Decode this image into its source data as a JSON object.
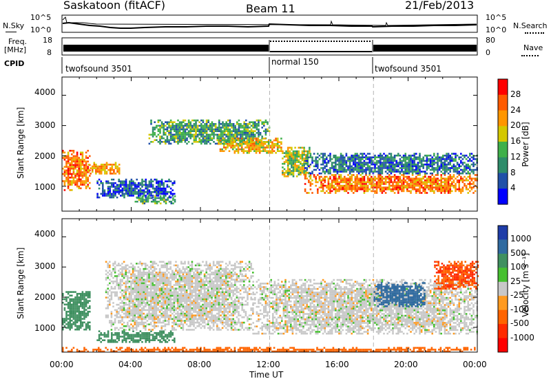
{
  "header": {
    "title": "Saskatoon (fitACF)",
    "beam": "Beam 11",
    "date": "21/Feb/2013"
  },
  "strips": {
    "nsky_label": "N.Sky",
    "nsky_ticks": [
      "10^5",
      "10^0"
    ],
    "nsearch_label": "N.Search",
    "freq_label_1": "Freq.",
    "freq_label_2": "[MHz]",
    "freq_ticks": [
      "18",
      "8"
    ],
    "nave_ticks": [
      "80",
      "0"
    ],
    "nave_label": "Nave",
    "cpid_label": "CPID",
    "cpid_segments": [
      "twofsound 3501",
      "normal 150",
      "twofsound 3501"
    ]
  },
  "panels": {
    "yaxis_label": "Slant Range [km]",
    "y_ticks": [
      "4000",
      "3000",
      "2000",
      "1000"
    ],
    "x_ticks": [
      "00:00",
      "04:00",
      "08:00",
      "12:00",
      "16:00",
      "20:00",
      "00:00"
    ],
    "xaxis_label": "Time UT"
  },
  "colorbars": {
    "power_label": "Power [dB]",
    "power_ticks": [
      "28",
      "24",
      "20",
      "16",
      "12",
      "8",
      "4"
    ],
    "power_colors": [
      "#ff0000",
      "#ff5a00",
      "#ff9600",
      "#d4c800",
      "#3fb04a",
      "#2e8c6a",
      "#2050a8",
      "#0000ff"
    ],
    "velocity_label": "Velocity [m s⁻¹]",
    "velocity_ticks": [
      "1000",
      "500",
      "100",
      "25",
      "-25",
      "-100",
      "-500",
      "-1000"
    ],
    "velocity_colors": [
      "#1e3ca8",
      "#2f6aa0",
      "#3f9060",
      "#46c030",
      "#c8c8c8",
      "#ff9a20",
      "#ff6400",
      "#ff2a00",
      "#ff0000"
    ]
  },
  "chart_data": [
    {
      "type": "heatmap",
      "title": "Power",
      "xlabel": "Time UT",
      "ylabel": "Slant Range [km]",
      "xlim": [
        0,
        24
      ],
      "ylim": [
        180,
        4600
      ],
      "colorbar_label": "Power [dB]",
      "colorbar_range": [
        0,
        32
      ],
      "regions": [
        {
          "t": [
            0.0,
            1.6
          ],
          "r": [
            900,
            2200
          ],
          "db": 26
        },
        {
          "t": [
            1.5,
            3.3
          ],
          "r": [
            1400,
            1800
          ],
          "db": 24
        },
        {
          "t": [
            2.0,
            6.5
          ],
          "r": [
            650,
            1250
          ],
          "db": 8
        },
        {
          "t": [
            4.2,
            6.5
          ],
          "r": [
            450,
            700
          ],
          "db": 14
        },
        {
          "t": [
            5.0,
            12.0
          ],
          "r": [
            2400,
            3200
          ],
          "db": 14
        },
        {
          "t": [
            9.0,
            12.7
          ],
          "r": [
            2100,
            2600
          ],
          "db": 22
        },
        {
          "t": [
            12.7,
            14.3
          ],
          "r": [
            1300,
            2300
          ],
          "db": 18
        },
        {
          "t": [
            14.0,
            24.0
          ],
          "r": [
            800,
            1400
          ],
          "db": 26
        },
        {
          "t": [
            14.0,
            24.0
          ],
          "r": [
            1400,
            2100
          ],
          "db": 10
        }
      ]
    },
    {
      "type": "heatmap",
      "title": "Velocity",
      "xlabel": "Time UT",
      "ylabel": "Slant Range [km]",
      "xlim": [
        0,
        24
      ],
      "ylim": [
        180,
        4600
      ],
      "colorbar_label": "Velocity [m s⁻¹]",
      "regions": [
        {
          "t": [
            0.0,
            1.6
          ],
          "r": [
            900,
            2200
          ],
          "vel": 200
        },
        {
          "t": [
            2.0,
            6.5
          ],
          "r": [
            500,
            900
          ],
          "vel": 100
        },
        {
          "t": [
            2.5,
            11.0
          ],
          "r": [
            900,
            3200
          ],
          "vel": 0
        },
        {
          "t": [
            11.0,
            24.0
          ],
          "r": [
            800,
            2600
          ],
          "vel": 0
        },
        {
          "t": [
            18.0,
            21.0
          ],
          "r": [
            1700,
            2500
          ],
          "vel": 500
        },
        {
          "t": [
            21.5,
            24.0
          ],
          "r": [
            2300,
            3200
          ],
          "vel": -300
        },
        {
          "t": [
            0.0,
            24.0
          ],
          "r": [
            180,
            350
          ],
          "vel": -100
        }
      ]
    }
  ]
}
